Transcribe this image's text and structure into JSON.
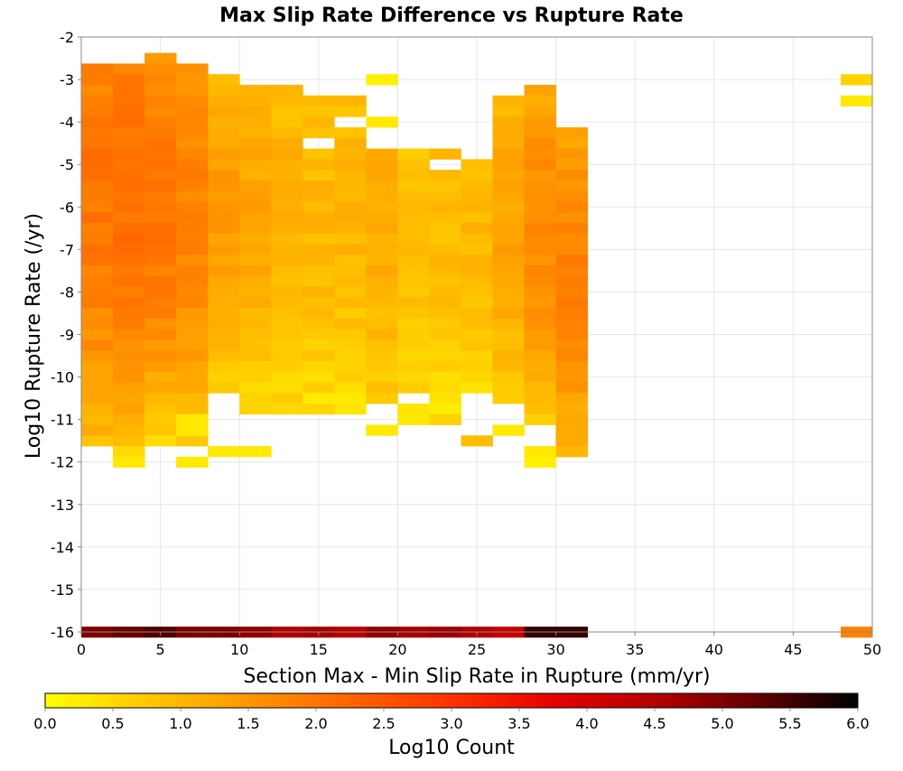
{
  "chart_data": {
    "type": "heatmap",
    "title": "Max Slip Rate Difference vs Rupture Rate",
    "xlabel": "Section Max - Min Slip Rate in Rupture (mm/yr)",
    "ylabel": "Log10 Rupture Rate (/yr)",
    "xlim": [
      0,
      50
    ],
    "ylim": [
      -16,
      -2
    ],
    "x_ticks": [
      "0",
      "5",
      "10",
      "15",
      "20",
      "25",
      "30",
      "35",
      "40",
      "45",
      "50"
    ],
    "y_ticks": [
      "-2",
      "-3",
      "-4",
      "-5",
      "-6",
      "-7",
      "-8",
      "-9",
      "-10",
      "-11",
      "-12",
      "-13",
      "-14",
      "-15",
      "-16"
    ],
    "grid": true,
    "bin_width_x": 2,
    "bin_height_y": 0.25,
    "x_bins": [
      0,
      2,
      4,
      6,
      8,
      10,
      12,
      14,
      16,
      18,
      20,
      22,
      24,
      26,
      28,
      30
    ],
    "colorbar": {
      "label": "Log10 Count",
      "min": 0.0,
      "max": 6.0,
      "ticks": [
        "0.0",
        "0.5",
        "1.0",
        "1.5",
        "2.0",
        "2.5",
        "3.0",
        "3.5",
        "4.0",
        "4.5",
        "5.0",
        "5.5",
        "6.0"
      ],
      "stops": [
        "#ffff00",
        "#ffc800",
        "#ff9600",
        "#ff6400",
        "#ff3200",
        "#e60000",
        "#b40000",
        "#640000",
        "#000000"
      ]
    },
    "columns": [
      {
        "x": 0,
        "y_top": -2.75,
        "y_bottom": -11.5,
        "peak": -5.5,
        "ends": 0.9,
        "mid": 2.0
      },
      {
        "x": 2,
        "y_top": -2.75,
        "y_bottom": -12.0,
        "peak": -5.5,
        "ends": 0.9,
        "mid": 2.1
      },
      {
        "x": 4,
        "y_top": -2.5,
        "y_bottom": -11.5,
        "peak": -6.0,
        "ends": 0.6,
        "mid": 2.05
      },
      {
        "x": 6,
        "y_top": -2.75,
        "y_bottom": -11.5,
        "peak": -6.0,
        "ends": 0.8,
        "mid": 1.8
      },
      {
        "x": 8,
        "y_top": -3.0,
        "y_bottom": -10.25,
        "peak": -6.0,
        "ends": 0.6,
        "mid": 1.45
      },
      {
        "x": 10,
        "y_top": -3.25,
        "y_bottom": -10.75,
        "peak": -6.0,
        "ends": 0.5,
        "mid": 1.25
      },
      {
        "x": 12,
        "y_top": -3.25,
        "y_bottom": -10.75,
        "peak": -6.0,
        "ends": 0.5,
        "mid": 1.1
      },
      {
        "x": 14,
        "y_top": -3.5,
        "y_bottom": -10.75,
        "peak": -6.0,
        "ends": 0.4,
        "mid": 1.0
      },
      {
        "x": 16,
        "y_top": -3.5,
        "y_bottom": -10.75,
        "peak": -6.0,
        "ends": 0.4,
        "mid": 1.05
      },
      {
        "x": 18,
        "y_top": -4.5,
        "y_bottom": -10.5,
        "peak": -6.0,
        "ends": 0.7,
        "mid": 1.2
      },
      {
        "x": 20,
        "y_top": -4.75,
        "y_bottom": -10.75,
        "peak": -6.5,
        "ends": 0.4,
        "mid": 0.9
      },
      {
        "x": 22,
        "y_top": -4.75,
        "y_bottom": -10.75,
        "peak": -6.5,
        "ends": 0.4,
        "mid": 0.95
      },
      {
        "x": 24,
        "y_top": -5.0,
        "y_bottom": -10.5,
        "peak": -6.5,
        "ends": 0.4,
        "mid": 1.0
      },
      {
        "x": 26,
        "y_top": -3.5,
        "y_bottom": -10.5,
        "peak": -6.5,
        "ends": 0.7,
        "mid": 1.3
      },
      {
        "x": 28,
        "y_top": -3.25,
        "y_bottom": -11.0,
        "peak": -6.5,
        "ends": 0.7,
        "mid": 1.7
      },
      {
        "x": 30,
        "y_top": -4.25,
        "y_bottom": -11.75,
        "peak": -7.5,
        "ends": 0.9,
        "mid": 1.8
      }
    ],
    "extra_cells": [
      {
        "x": 0,
        "y": -11.25,
        "v": 1.2
      },
      {
        "x": 2,
        "y": -11.75,
        "v": 0.5
      },
      {
        "x": 2,
        "y": -12.0,
        "v": 0.3
      },
      {
        "x": 6,
        "y": -11.0,
        "v": 0.3
      },
      {
        "x": 6,
        "y": -11.25,
        "v": 0.3
      },
      {
        "x": 6,
        "y": -12.0,
        "v": 0.3
      },
      {
        "x": 8,
        "y": -11.75,
        "v": 0.3
      },
      {
        "x": 10,
        "y": -11.75,
        "v": 0.3
      },
      {
        "x": 18,
        "y": -11.25,
        "v": 0.3
      },
      {
        "x": 20,
        "y": -11.0,
        "v": 0.3
      },
      {
        "x": 22,
        "y": -11.0,
        "v": 0.6
      },
      {
        "x": 24,
        "y": -11.5,
        "v": 0.9
      },
      {
        "x": 26,
        "y": -11.25,
        "v": 0.3
      },
      {
        "x": 28,
        "y": -11.75,
        "v": 0.3
      },
      {
        "x": 28,
        "y": -12.0,
        "v": 0.2
      },
      {
        "x": 30,
        "y": -11.5,
        "v": 1.2
      },
      {
        "x": 30,
        "y": -11.75,
        "v": 1.0
      },
      {
        "x": 18,
        "y": -3.0,
        "v": 0.2
      },
      {
        "x": 18,
        "y": -4.0,
        "v": 0.3
      },
      {
        "x": 48,
        "y": -3.0,
        "v": 0.6
      },
      {
        "x": 48,
        "y": -3.5,
        "v": 0.3
      }
    ],
    "holes": [
      {
        "x": 16,
        "y": -4.0
      },
      {
        "x": 22,
        "y": -4.0
      },
      {
        "x": 20,
        "y": -10.5
      },
      {
        "x": 24,
        "y": -10.5
      },
      {
        "x": 26,
        "y": -10.75
      },
      {
        "x": 8,
        "y": -10.5
      },
      {
        "x": 18,
        "y": -4.5
      },
      {
        "x": 14,
        "y": -4.5
      },
      {
        "x": 22,
        "y": -5.0
      },
      {
        "x": 24,
        "y": -4.75
      }
    ],
    "bottom_row": {
      "y": -16.0,
      "values": [
        5.0,
        5.2,
        5.4,
        5.0,
        5.0,
        4.8,
        4.5,
        4.6,
        4.4,
        4.8,
        4.6,
        4.7,
        4.5,
        4.2,
        5.6,
        5.6
      ],
      "extra": [
        {
          "x": 48,
          "v": 1.8
        }
      ]
    }
  }
}
